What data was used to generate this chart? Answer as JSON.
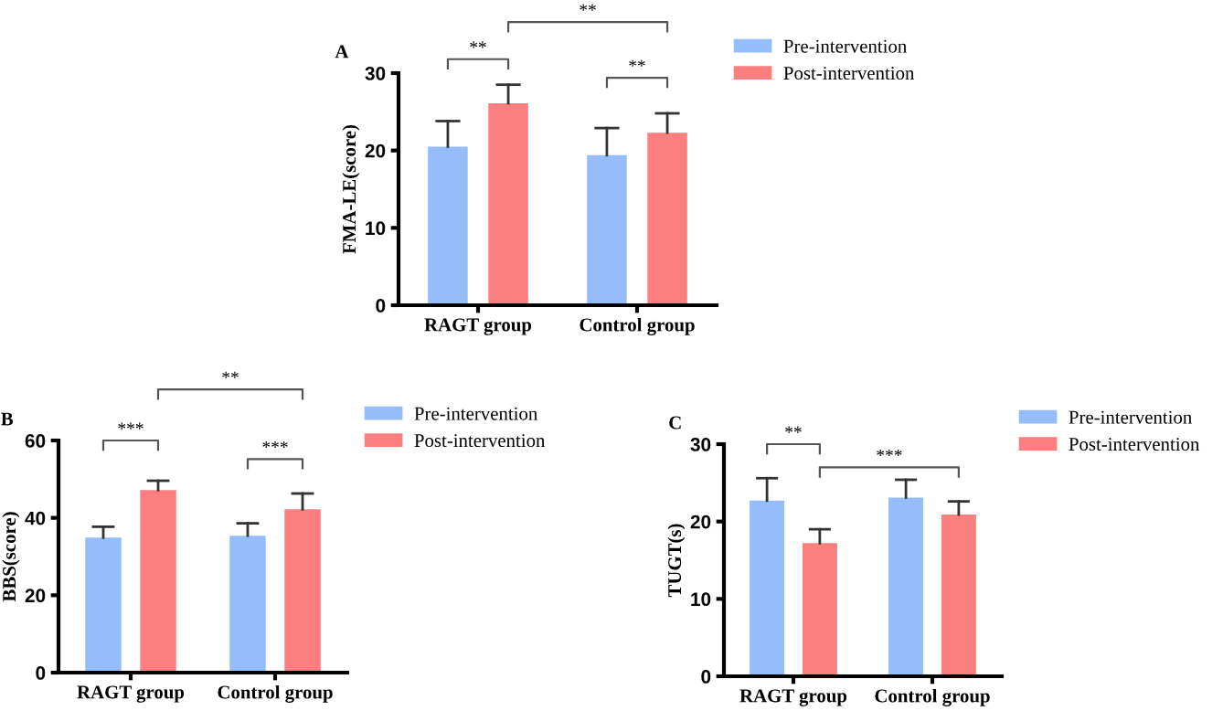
{
  "chart_data": [
    {
      "type": "bar",
      "title": "A",
      "ylabel": "FMA-LE(score)",
      "categories": [
        "RAGT group",
        "Control group"
      ],
      "ylim": [
        0,
        30
      ],
      "yticks": [
        0,
        10,
        20,
        30
      ],
      "legend": "top right",
      "grid": false,
      "series": [
        {
          "name": "Pre-intervention",
          "color": "#94bdfa",
          "values": [
            20.5,
            19.4
          ],
          "errors": [
            [
              20.5,
              23.8
            ],
            [
              19.4,
              22.9
            ]
          ]
        },
        {
          "name": "Post-intervention",
          "color": "#fc7f7f",
          "values": [
            26.1,
            22.3
          ],
          "errors": [
            [
              26.1,
              28.5
            ],
            [
              22.3,
              24.8
            ]
          ]
        }
      ],
      "annotations": [
        "**",
        "**",
        "**"
      ]
    },
    {
      "type": "bar",
      "title": "B",
      "ylabel": "BBS(score)",
      "categories": [
        "RAGT group",
        "Control group"
      ],
      "ylim": [
        0,
        60
      ],
      "yticks": [
        0,
        20,
        40,
        60
      ],
      "legend": "top right",
      "grid": false,
      "series": [
        {
          "name": "Pre-intervention",
          "color": "#94bdfa",
          "values": [
            34.9,
            35.4
          ],
          "errors": [
            [
              34.9,
              37.7
            ],
            [
              35.4,
              38.6
            ]
          ]
        },
        {
          "name": "Post-intervention",
          "color": "#fc7f7f",
          "values": [
            47.2,
            42.2
          ],
          "errors": [
            [
              47.2,
              49.6
            ],
            [
              42.2,
              46.3
            ]
          ]
        }
      ],
      "annotations": [
        "***",
        "**",
        "***"
      ]
    },
    {
      "type": "bar",
      "title": "C",
      "ylabel": "TUGT(s)",
      "categories": [
        "RAGT group",
        "Control group"
      ],
      "ylim": [
        0,
        30
      ],
      "yticks": [
        0,
        10,
        20,
        30
      ],
      "legend": "top right",
      "grid": false,
      "series": [
        {
          "name": "Pre-intervention",
          "color": "#94bdfa",
          "values": [
            22.7,
            23.1
          ],
          "errors": [
            [
              22.7,
              25.6
            ],
            [
              23.1,
              25.4
            ]
          ]
        },
        {
          "name": "Post-intervention",
          "color": "#fc7f7f",
          "values": [
            17.2,
            20.9
          ],
          "errors": [
            [
              17.2,
              19.0
            ],
            [
              20.9,
              22.6
            ]
          ]
        }
      ],
      "annotations": [
        "**",
        "***"
      ]
    }
  ]
}
